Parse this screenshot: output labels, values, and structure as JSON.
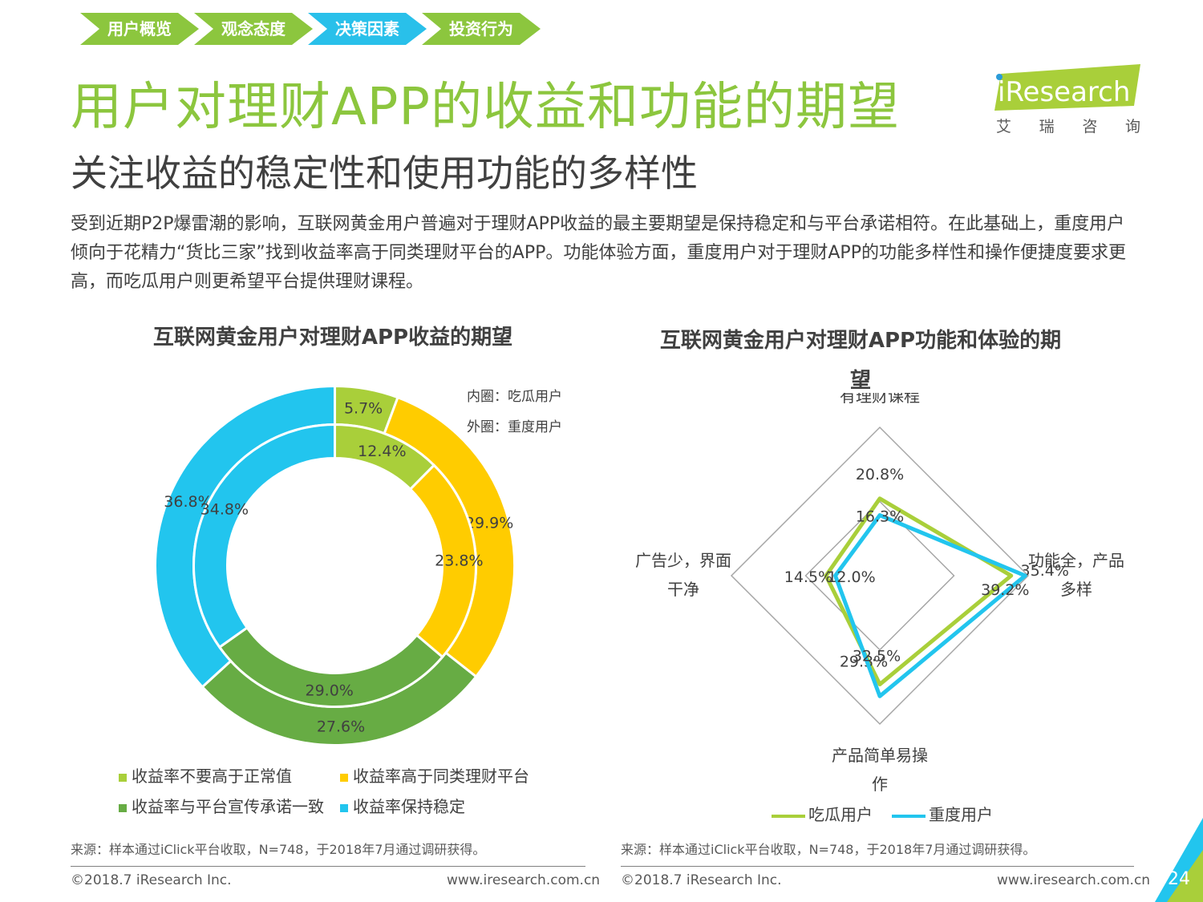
{
  "nav": {
    "steps": [
      "用户概览",
      "观念态度",
      "决策因素",
      "投资行为"
    ],
    "colors": [
      "#8cc63e",
      "#8cc63e",
      "#29c0ea",
      "#8cc63e"
    ]
  },
  "header": {
    "title": "用户对理财APP的收益和功能的期望",
    "subtitle": "关注收益的稳定性和使用功能的多样性",
    "intro": "受到近期P2P爆雷潮的影响，互联网黄金用户普遍对于理财APP收益的最主要期望是保持稳定和与平台承诺相符。在此基础上，重度用户倾向于花精力“货比三家”找到收益率高于同类理财平台的APP。功能体验方面，重度用户对于理财APP的功能多样性和操作便捷度要求更高，而吃瓜用户则更希望平台提供理财课程。"
  },
  "logo": {
    "brand": "iResearch",
    "sub": "艾 瑞 咨 询"
  },
  "colors": {
    "green_light": "#a9cf3a",
    "yellow": "#ffcc00",
    "green_dark": "#67ac44",
    "blue": "#22c5ee",
    "title_green": "#8cc63e"
  },
  "chart_data": [
    {
      "type": "pie",
      "variant": "double-donut",
      "title": "互联网黄金用户对理财APP收益的期望",
      "notes": [
        "内圈：吃瓜用户",
        "外圈：重度用户"
      ],
      "categories": [
        "收益率不要高于正常值",
        "收益率高于同类理财平台",
        "收益率与平台宣传承诺一致",
        "收益率保持稳定"
      ],
      "series": [
        {
          "name": "外圈：重度用户",
          "values": [
            5.7,
            29.9,
            27.6,
            36.8
          ],
          "labels": [
            "5.7%",
            "29.9%",
            "27.6%",
            "36.8%"
          ]
        },
        {
          "name": "内圈：吃瓜用户",
          "values": [
            12.4,
            23.8,
            29.0,
            34.8
          ],
          "labels": [
            "12.4%",
            "23.8%",
            "29.0%",
            "34.8%"
          ]
        }
      ],
      "legend_placement": "bottom"
    },
    {
      "type": "radar",
      "title": "互联网黄金用户对理财APP功能和体验的期望",
      "axes": [
        "有理财课程",
        "功能全，产品多样",
        "产品简单易操作",
        "广告少，界面干净"
      ],
      "series": [
        {
          "name": "吃瓜用户",
          "values": [
            20.8,
            35.4,
            29.3,
            14.5
          ],
          "labels": [
            "20.8%",
            "35.4%",
            "29.3%",
            "14.5%"
          ]
        },
        {
          "name": "重度用户",
          "values": [
            16.3,
            39.2,
            32.5,
            12.0
          ],
          "labels": [
            "16.3%",
            "39.2%",
            "32.5%",
            "12.0%"
          ]
        }
      ],
      "max": 40,
      "legend_placement": "bottom"
    }
  ],
  "footer": {
    "source": "来源：样本通过iClick平台收取，N=748，于2018年7月通过调研获得。",
    "copyright": "©2018.7 iResearch Inc.",
    "url": "www.iresearch.com.cn",
    "page": "24"
  }
}
